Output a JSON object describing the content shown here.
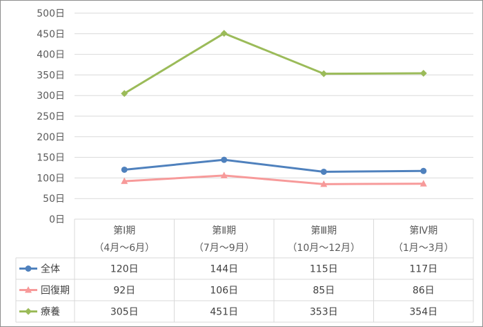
{
  "chart_data": {
    "type": "line",
    "categories": [
      {
        "line1": "第Ⅰ期",
        "line2": "（4月～6月）"
      },
      {
        "line1": "第Ⅱ期",
        "line2": "（7月～9月）"
      },
      {
        "line1": "第Ⅲ期",
        "line2": "（10月～12月）"
      },
      {
        "line1": "第Ⅳ期",
        "line2": "（1月～3月）"
      }
    ],
    "ylim": [
      0,
      500
    ],
    "yticks": [
      "0日",
      "50日",
      "100日",
      "150日",
      "200日",
      "250日",
      "300日",
      "350日",
      "400日",
      "450日",
      "500日"
    ],
    "yticks_values": [
      0,
      50,
      100,
      150,
      200,
      250,
      300,
      350,
      400,
      450,
      500
    ],
    "grid": true,
    "legend": "data-table",
    "series": [
      {
        "name": "全体",
        "values": [
          120,
          144,
          115,
          117
        ],
        "labels": [
          "120日",
          "144日",
          "115日",
          "117日"
        ],
        "color": "#4f81bd",
        "marker": "circle"
      },
      {
        "name": "回復期",
        "values": [
          92,
          106,
          85,
          86
        ],
        "labels": [
          "92日",
          "106日",
          "85日",
          "86日"
        ],
        "color": "#f79a9a",
        "marker": "triangle"
      },
      {
        "name": "療養",
        "values": [
          305,
          451,
          353,
          354
        ],
        "labels": [
          "305日",
          "451日",
          "353日",
          "354日"
        ],
        "color": "#9bbb59",
        "marker": "diamond"
      }
    ]
  }
}
